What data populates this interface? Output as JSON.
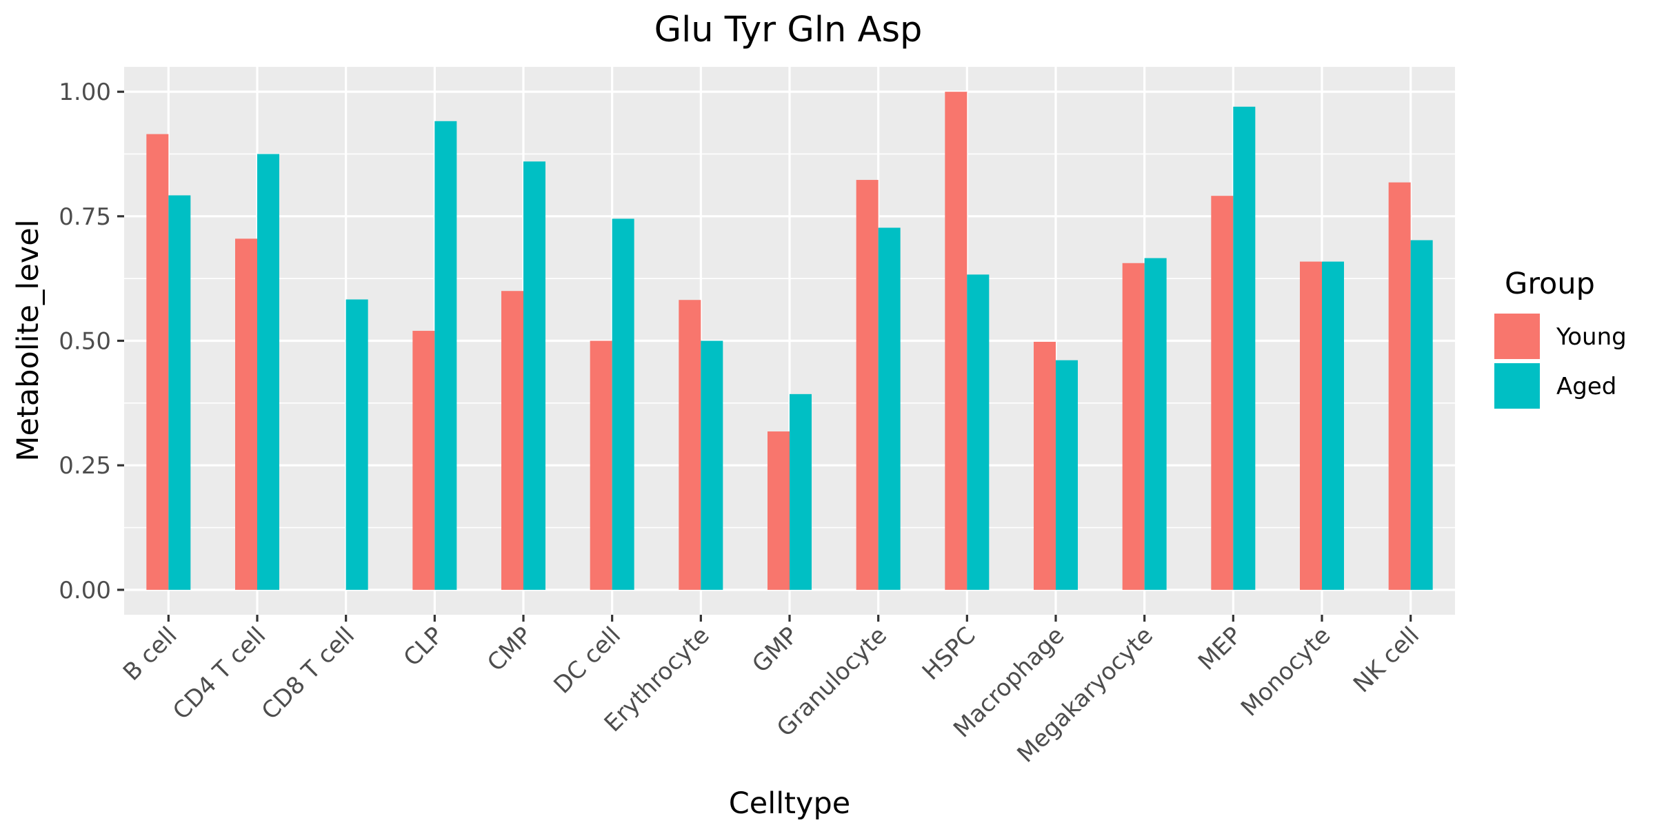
{
  "chart_data": {
    "type": "bar",
    "title": "Glu Tyr Gln Asp",
    "xlabel": "Celltype",
    "ylabel": "Metabolite_level",
    "ylim": [
      -0.05,
      1.05
    ],
    "yticks": [
      0.0,
      0.25,
      0.5,
      0.75,
      1.0
    ],
    "ytick_labels": [
      "0.00",
      "0.25",
      "0.50",
      "0.75",
      "1.00"
    ],
    "grid": true,
    "legend_title": "Group",
    "legend_position": "right",
    "categories": [
      "B cell",
      "CD4 T cell",
      "CD8 T cell",
      "CLP",
      "CMP",
      "DC cell",
      "Erythrocyte",
      "GMP",
      "Granulocyte",
      "HSPC",
      "Macrophage",
      "Megakaryocyte",
      "MEP",
      "Monocyte",
      "NK cell"
    ],
    "series": [
      {
        "name": "Young",
        "color": "#F8766D",
        "values": [
          0.915,
          0.705,
          null,
          0.52,
          0.6,
          0.5,
          0.582,
          0.318,
          0.823,
          1.0,
          0.498,
          0.656,
          0.791,
          0.659,
          0.818
        ]
      },
      {
        "name": "Aged",
        "color": "#00BFC4",
        "values": [
          0.792,
          0.875,
          0.583,
          0.941,
          0.86,
          0.745,
          0.5,
          0.393,
          0.727,
          0.633,
          0.461,
          0.666,
          0.97,
          0.659,
          0.702
        ]
      }
    ]
  }
}
